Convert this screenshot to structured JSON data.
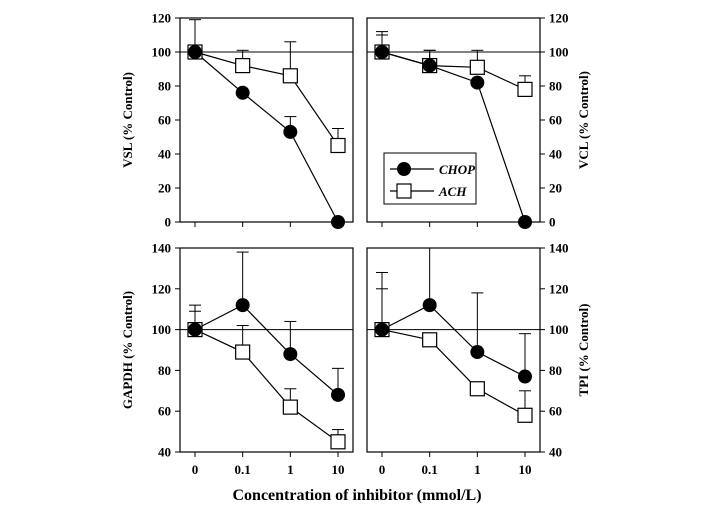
{
  "figure": {
    "xlabel": "Concentration of inhibitor (mmol/L)"
  },
  "legend": {
    "position": "center",
    "entries": [
      {
        "name": "CHOP",
        "marker": "filled-circle"
      },
      {
        "name": "ACH",
        "marker": "open-square"
      }
    ]
  },
  "chart_data": [
    {
      "type": "line",
      "ylabel": "VSL (% Control)",
      "ylim": [
        0,
        120
      ],
      "yticks": [
        0,
        20,
        40,
        60,
        80,
        100,
        120
      ],
      "y_axis_side": "left",
      "x_categories": [
        "0",
        "0.1",
        "1",
        "10"
      ],
      "x_ticks_labeled": false,
      "reference_line": 100,
      "series": [
        {
          "name": "CHOP",
          "values": [
            100,
            76,
            53,
            0
          ],
          "errors": [
            19,
            0,
            9,
            0
          ]
        },
        {
          "name": "ACH",
          "values": [
            100,
            92,
            86,
            45
          ],
          "errors": [
            0,
            9,
            20,
            10
          ]
        }
      ]
    },
    {
      "type": "line",
      "ylabel": "VCL (% Control)",
      "ylim": [
        0,
        120
      ],
      "yticks": [
        0,
        20,
        40,
        60,
        80,
        100,
        120
      ],
      "y_axis_side": "right",
      "x_categories": [
        "0",
        "0.1",
        "1",
        "10"
      ],
      "x_ticks_labeled": false,
      "reference_line": 100,
      "series": [
        {
          "name": "CHOP",
          "values": [
            100,
            92,
            82,
            0
          ],
          "errors": [
            12,
            9,
            0,
            0
          ]
        },
        {
          "name": "ACH",
          "values": [
            100,
            92,
            91,
            78
          ],
          "errors": [
            10,
            9,
            10,
            8
          ]
        }
      ]
    },
    {
      "type": "line",
      "ylabel": "GAPDH (% Control)",
      "ylim": [
        40,
        140
      ],
      "yticks": [
        40,
        60,
        80,
        100,
        120,
        140
      ],
      "y_axis_side": "left",
      "x_categories": [
        "0",
        "0.1",
        "1",
        "10"
      ],
      "x_ticks_labeled": true,
      "reference_line": 100,
      "series": [
        {
          "name": "CHOP",
          "values": [
            100,
            112,
            88,
            68
          ],
          "errors": [
            12,
            26,
            16,
            13
          ]
        },
        {
          "name": "ACH",
          "values": [
            100,
            89,
            62,
            45
          ],
          "errors": [
            9,
            13,
            9,
            6
          ]
        }
      ]
    },
    {
      "type": "line",
      "ylabel": "TPI (% Control)",
      "ylim": [
        40,
        140
      ],
      "yticks": [
        40,
        60,
        80,
        100,
        120,
        140
      ],
      "y_axis_side": "right",
      "x_categories": [
        "0",
        "0.1",
        "1",
        "10"
      ],
      "x_ticks_labeled": true,
      "reference_line": 100,
      "series": [
        {
          "name": "CHOP",
          "values": [
            100,
            112,
            89,
            77
          ],
          "errors": [
            28,
            40,
            29,
            21
          ]
        },
        {
          "name": "ACH",
          "values": [
            100,
            95,
            71,
            58
          ],
          "errors": [
            20,
            0,
            0,
            12
          ]
        }
      ]
    }
  ]
}
